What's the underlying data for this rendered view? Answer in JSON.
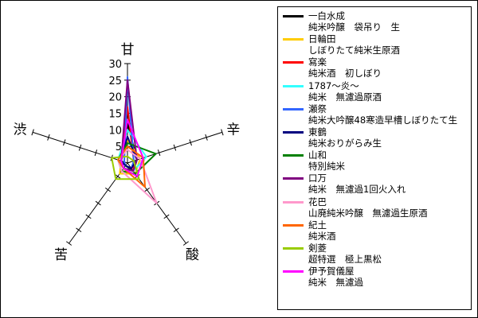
{
  "chart_data": {
    "type": "radar",
    "axes": [
      "甘",
      "辛",
      "酸",
      "苦",
      "渋"
    ],
    "rlim": [
      0,
      30
    ],
    "tick_labels": [
      "5",
      "10",
      "15",
      "20",
      "25",
      "30"
    ],
    "grid": false,
    "legend_position": "right",
    "series": [
      {
        "name": "一白水成 純米吟醸 袋吊り 生",
        "line1": "一白水成",
        "line2": "純米吟醸　袋吊り　生",
        "color": "#000000",
        "values": [
          12,
          3,
          3,
          1,
          2
        ]
      },
      {
        "name": "日輪田 しぼりたて純米生原酒",
        "line1": "日輪田",
        "line2": "しぼりたて純米生原酒",
        "color": "#ffcc00",
        "values": [
          7,
          4,
          4,
          4,
          2
        ]
      },
      {
        "name": "寫楽 純米酒 初しぼり",
        "line1": "寫楽",
        "line2": "純米酒　初しぼり",
        "color": "#ff0000",
        "values": [
          17,
          2,
          3,
          2,
          2
        ]
      },
      {
        "name": "1787〜炎〜 純米 無濾過原酒",
        "line1": "1787〜炎〜",
        "line2": "純米　無濾過原酒",
        "color": "#33ffff",
        "values": [
          10,
          6,
          3,
          2,
          3
        ]
      },
      {
        "name": "瀬祭 純米大吟醸48寒造早槽しぼりたて生",
        "line1": "瀬祭",
        "line2": "純米大吟醸48寒造早槽しぼりたて生",
        "color": "#3366ff",
        "values": [
          26,
          2,
          2,
          1,
          1
        ]
      },
      {
        "name": "東鶴 純米おりがらみ生",
        "line1": "東鶴",
        "line2": "純米おりがらみ生",
        "color": "#000080",
        "values": [
          8,
          3,
          2,
          1,
          2
        ]
      },
      {
        "name": "山和 特別純米",
        "line1": "山和",
        "line2": "特別純米",
        "color": "#008000",
        "values": [
          6,
          9,
          4,
          3,
          3
        ]
      },
      {
        "name": "口万 純米 無濾過1回火入れ",
        "line1": "口万",
        "line2": "純米　無濾過1回火入れ",
        "color": "#800080",
        "values": [
          25,
          3,
          3,
          2,
          2
        ]
      },
      {
        "name": "花巴 山廃純米吟醸 無濾過生原酒",
        "line1": "花巴",
        "line2": "山廃純米吟醸　無濾過生原酒",
        "color": "#ff99cc",
        "values": [
          4,
          4,
          15,
          3,
          3
        ]
      },
      {
        "name": "紀土 純米酒",
        "line1": "紀土",
        "line2": "純米酒",
        "color": "#ff6600",
        "values": [
          5,
          5,
          9,
          2,
          3
        ]
      },
      {
        "name": "剣菱 超特選 極上黒松",
        "line1": "剣菱",
        "line2": "超特選　極上黒松",
        "color": "#99cc00",
        "values": [
          2,
          2,
          6,
          6,
          5
        ]
      },
      {
        "name": "伊予賀儀屋 純米 無濾過",
        "line1": "伊予賀儀屋",
        "line2": "純米　無濾過",
        "color": "#ff00ff",
        "values": [
          13,
          5,
          5,
          2,
          2
        ]
      }
    ]
  }
}
